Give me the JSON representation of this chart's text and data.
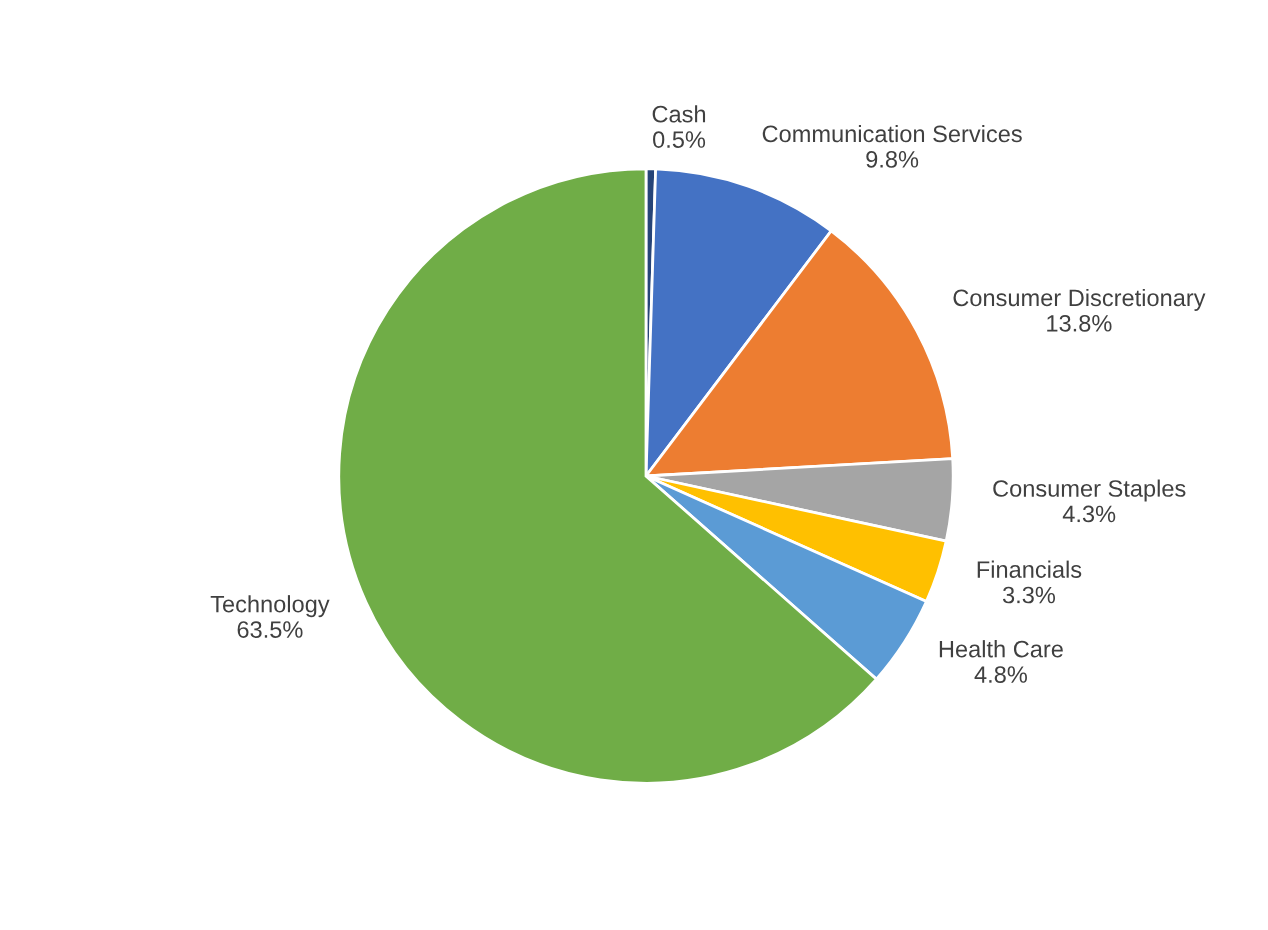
{
  "chart_data": {
    "type": "pie",
    "categories": [
      "Cash",
      "Communication Services",
      "Consumer Discretionary",
      "Consumer Staples",
      "Financials",
      "Health Care",
      "Technology"
    ],
    "values": [
      0.5,
      9.8,
      13.8,
      4.3,
      3.3,
      4.8,
      63.5
    ],
    "value_labels": [
      "0.5%",
      "9.8%",
      "13.8%",
      "4.3%",
      "3.3%",
      "4.8%",
      "63.5%"
    ],
    "colors": [
      "#264478",
      "#4472c4",
      "#ed7d31",
      "#a5a5a5",
      "#ffc000",
      "#5b9bd5",
      "#70ad47"
    ]
  }
}
